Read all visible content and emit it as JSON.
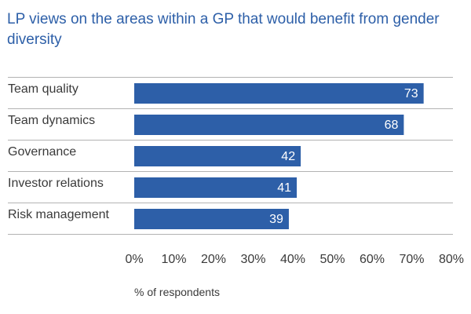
{
  "colors": {
    "title": "#2d5fa8",
    "bar": "#2d5fa8",
    "gridline": "#b3b3b3",
    "value_label": "#ffffff",
    "text": "#3a3a3a"
  },
  "chart_data": {
    "type": "bar",
    "orientation": "horizontal",
    "title": "LP views on the areas within a GP that would benefit from gender diversity",
    "categories": [
      "Team quality",
      "Team dynamics",
      "Governance",
      "Investor relations",
      "Risk management"
    ],
    "values": [
      73,
      68,
      42,
      41,
      39
    ],
    "value_labels": [
      "73",
      "68",
      "42",
      "41",
      "39"
    ],
    "xlabel": "% of respondents",
    "ylabel": "",
    "xlim": [
      0,
      80
    ],
    "xticks": [
      "0%",
      "10%",
      "20%",
      "30%",
      "40%",
      "50%",
      "60%",
      "70%",
      "80%"
    ],
    "grid": "horizontal separators between categories",
    "legend": "none"
  }
}
